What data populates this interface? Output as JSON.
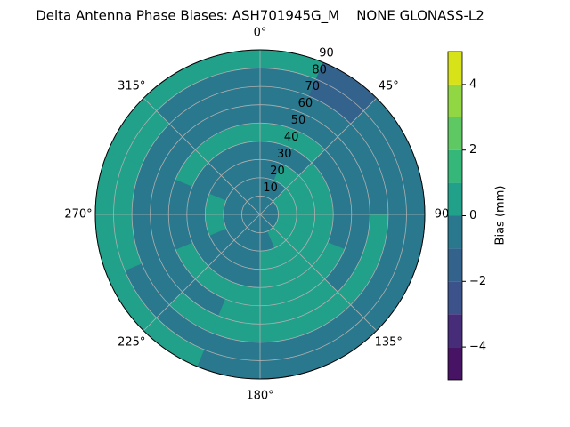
{
  "chart_data": {
    "type": "polar-contour",
    "title": "Delta Antenna Phase Biases: ASH701945G_M    NONE GLONASS-L2",
    "rlim": [
      0,
      90
    ],
    "rticks": [
      10,
      20,
      30,
      40,
      50,
      60,
      70,
      80,
      90
    ],
    "thetaticks": [
      {
        "value": 0,
        "label": "0°"
      },
      {
        "value": 45,
        "label": "45°"
      },
      {
        "value": 90,
        "label": "90"
      },
      {
        "value": 135,
        "label": "135°"
      },
      {
        "value": 180,
        "label": "180°"
      },
      {
        "value": 225,
        "label": "225°"
      },
      {
        "value": 270,
        "label": "270°"
      },
      {
        "value": 315,
        "label": "315°"
      }
    ],
    "grid": true,
    "r_edges": [
      0,
      10,
      20,
      30,
      40,
      50,
      60,
      70,
      80,
      90
    ],
    "theta_edges": [
      0,
      22.5,
      45,
      67.5,
      90,
      112.5,
      135,
      157.5,
      180,
      202.5,
      225,
      247.5,
      270,
      292.5,
      315,
      337.5,
      360
    ],
    "values": [
      [
        -0.5,
        -0.5,
        -0.5,
        -0.5,
        -0.5,
        -0.5,
        -0.5,
        -0.5,
        -0.5,
        -0.5,
        -0.5,
        -0.5,
        -0.5,
        -0.5,
        -0.5,
        -0.5
      ],
      [
        -0.5,
        -0.5,
        0.5,
        0.5,
        0.5,
        0.5,
        0.5,
        -0.5,
        -0.5,
        -0.5,
        -0.5,
        -0.5,
        -0.5,
        -0.5,
        -0.5,
        -0.5
      ],
      [
        -0.5,
        0.5,
        0.5,
        0.5,
        0.5,
        0.5,
        0.5,
        0.5,
        -0.5,
        -0.5,
        -0.5,
        0.5,
        0.5,
        -0.5,
        -0.5,
        -0.5
      ],
      [
        -0.5,
        -0.5,
        0.5,
        0.5,
        0.5,
        0.5,
        0.5,
        0.5,
        -0.5,
        -0.5,
        -0.5,
        -0.5,
        -0.5,
        -0.5,
        -0.5,
        -0.5
      ],
      [
        0.5,
        0.5,
        -0.5,
        -0.5,
        -0.5,
        0.5,
        0.5,
        0.5,
        0.5,
        0.5,
        0.5,
        -0.5,
        -0.5,
        0.5,
        0.5,
        0.5
      ],
      [
        -0.5,
        -0.5,
        -0.5,
        -0.5,
        -0.5,
        -0.5,
        0.5,
        0.5,
        0.5,
        -0.5,
        -0.5,
        -0.5,
        -0.5,
        -0.5,
        -0.5,
        -0.5
      ],
      [
        -0.5,
        -0.5,
        -0.5,
        -0.5,
        0.5,
        0.5,
        0.5,
        0.5,
        0.5,
        0.5,
        -0.5,
        -0.5,
        -0.5,
        -0.5,
        -0.5,
        -0.5
      ],
      [
        -0.5,
        -1.5,
        -0.5,
        -0.5,
        -0.5,
        -0.5,
        -0.5,
        -0.5,
        -0.5,
        -0.5,
        -0.5,
        0.5,
        0.5,
        0.5,
        -0.5,
        -0.5
      ],
      [
        0.5,
        -1.5,
        -0.5,
        -0.5,
        -0.5,
        -0.5,
        -0.5,
        -0.5,
        -0.5,
        0.5,
        0.5,
        0.5,
        0.5,
        0.5,
        0.5,
        0.5
      ]
    ],
    "levels": [
      -5,
      -4,
      -3,
      -2,
      -1,
      0,
      1,
      2,
      3,
      4,
      5
    ],
    "colors": [
      "#471365",
      "#472c7a",
      "#3b528b",
      "#33638d",
      "#2a788e",
      "#21a08a",
      "#35b779",
      "#5ec962",
      "#90d743",
      "#d8e219"
    ],
    "colorbar_label": "Bias (mm)",
    "colorbar_ticks": [
      {
        "value": -4,
        "label": "−4"
      },
      {
        "value": -2,
        "label": "−2"
      },
      0,
      2,
      4
    ]
  }
}
